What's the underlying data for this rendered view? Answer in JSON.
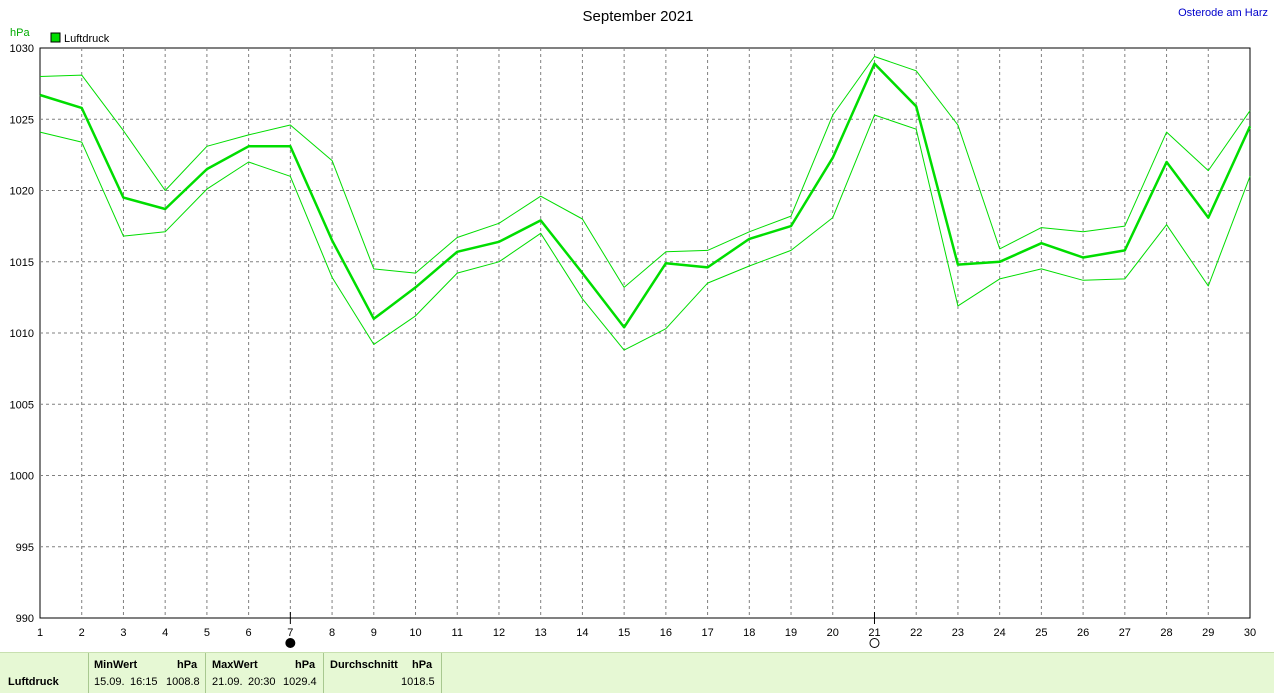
{
  "page": {
    "title": "September 2021",
    "location": "Osterode am Harz"
  },
  "chart_data": {
    "type": "line",
    "title": "September 2021",
    "ylabel": "hPa",
    "xlabel": "",
    "ylim": [
      990,
      1030
    ],
    "xlim": [
      1,
      30
    ],
    "yticks": [
      990,
      995,
      1000,
      1005,
      1010,
      1015,
      1020,
      1025,
      1030
    ],
    "x": [
      1,
      2,
      3,
      4,
      5,
      6,
      7,
      8,
      9,
      10,
      11,
      12,
      13,
      14,
      15,
      16,
      17,
      18,
      19,
      20,
      21,
      22,
      23,
      24,
      25,
      26,
      27,
      28,
      29,
      30
    ],
    "grid": true,
    "legend": "top-left",
    "series": [
      {
        "name": "Luftdruck",
        "role": "mean",
        "color": "#00dd00",
        "values": [
          1026.7,
          1025.8,
          1019.5,
          1018.7,
          1021.5,
          1023.1,
          1023.1,
          1016.5,
          1011.0,
          1013.2,
          1015.7,
          1016.4,
          1017.9,
          1014.2,
          1010.4,
          1014.9,
          1014.6,
          1016.6,
          1017.5,
          1022.3,
          1028.9,
          1025.9,
          1014.8,
          1015.0,
          1016.3,
          1015.3,
          1015.8,
          1022.0,
          1018.1,
          1024.5
        ]
      },
      {
        "role": "max",
        "color": "#00dd00",
        "values": [
          1028.0,
          1028.1,
          1024.2,
          1020.0,
          1023.1,
          1023.9,
          1024.6,
          1022.1,
          1014.5,
          1014.2,
          1016.7,
          1017.7,
          1019.6,
          1018.0,
          1013.2,
          1015.7,
          1015.8,
          1017.1,
          1018.2,
          1025.3,
          1029.4,
          1028.4,
          1024.6,
          1015.9,
          1017.4,
          1017.1,
          1017.5,
          1024.1,
          1021.4,
          1025.6
        ]
      },
      {
        "role": "min",
        "color": "#00dd00",
        "values": [
          1024.1,
          1023.4,
          1016.8,
          1017.1,
          1020.1,
          1022.0,
          1021.0,
          1013.9,
          1009.2,
          1011.2,
          1014.2,
          1015.0,
          1017.0,
          1012.4,
          1008.8,
          1010.3,
          1013.5,
          1014.7,
          1015.8,
          1018.1,
          1025.3,
          1024.3,
          1011.9,
          1013.8,
          1014.5,
          1013.7,
          1013.8,
          1017.6,
          1013.3,
          1021.0
        ]
      }
    ],
    "moon_phases": [
      {
        "day": 7,
        "phase": "new-moon"
      },
      {
        "day": 21,
        "phase": "full-moon"
      }
    ]
  },
  "footer": {
    "row_label": "Luftdruck",
    "min": {
      "header": "MinWert",
      "unit": "hPa",
      "date": "15.09.",
      "time": "16:15",
      "value": "1008.8"
    },
    "max": {
      "header": "MaxWert",
      "unit": "hPa",
      "date": "21.09.",
      "time": "20:30",
      "value": "1029.4"
    },
    "avg": {
      "header": "Durchschnitt",
      "unit": "hPa",
      "value": "1018.5"
    }
  }
}
